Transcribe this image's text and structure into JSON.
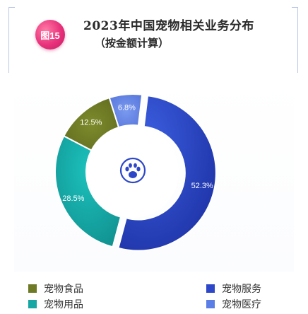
{
  "figure": {
    "badge": "图15",
    "title": "2023年中国宠物相关业务分布",
    "subtitle": "（按金额计算）"
  },
  "colors": {
    "badge": "#e8317a",
    "slice_blue_dark": "#2d47c8",
    "slice_blue_light": "#5b7ee6",
    "slice_teal": "#16a6a4",
    "slice_olive": "#6e7a26",
    "center_icon": "#2d47c8"
  },
  "chart_data": {
    "type": "pie",
    "style": "donut",
    "title": "2023年中国宠物相关业务分布",
    "subtitle": "（按金额计算）",
    "categories": [
      "宠物服务",
      "宠物用品",
      "宠物食品",
      "宠物医疗"
    ],
    "values": [
      52.3,
      28.5,
      12.5,
      6.8
    ],
    "value_labels": [
      "52.3%",
      "28.5%",
      "12.5%",
      "6.8%"
    ],
    "colors": [
      "#2d47c8",
      "#16a6a4",
      "#6e7a26",
      "#5b7ee6"
    ],
    "center_icon": "pet-paw-icon",
    "legend": {
      "placement": "bottom",
      "entries": [
        {
          "label": "宠物食品",
          "color": "#6e7a26"
        },
        {
          "label": "宠物服务",
          "color": "#2d47c8"
        },
        {
          "label": "宠物用品",
          "color": "#16a6a4"
        },
        {
          "label": "宠物医疗",
          "color": "#5b7ee6"
        }
      ]
    }
  }
}
